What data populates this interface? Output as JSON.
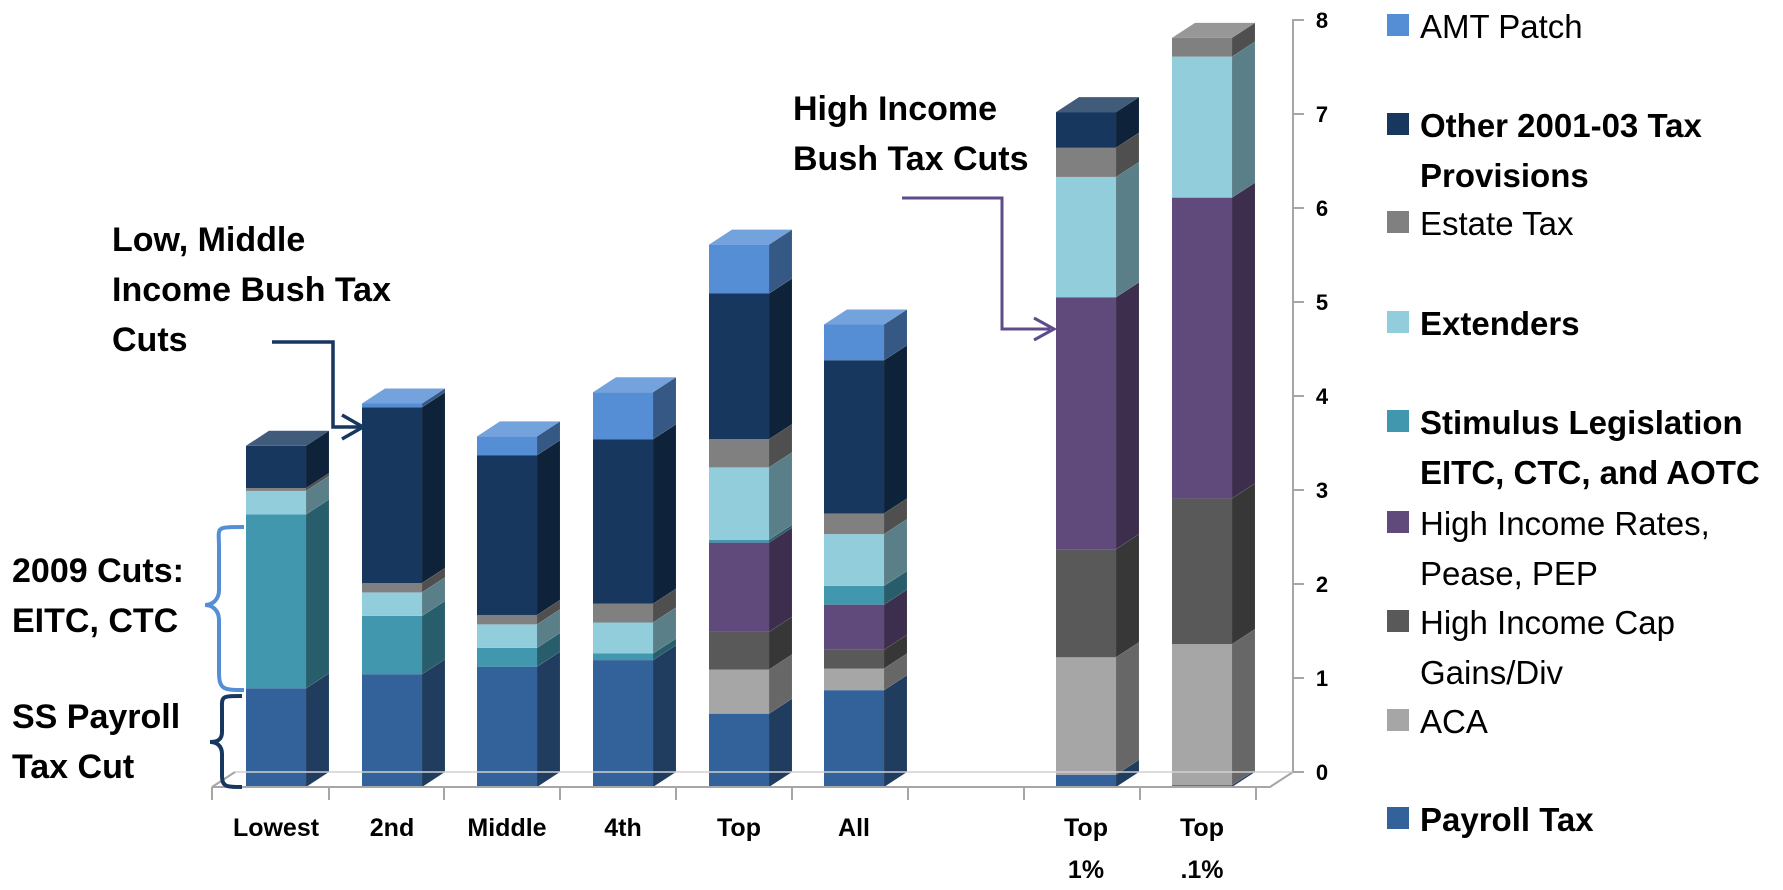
{
  "chart_data": {
    "type": "bar",
    "stacked": true,
    "categories": [
      "Lowest",
      "2nd",
      "Middle",
      "4th",
      "Top",
      "All",
      "Top 1%",
      "Top .1%"
    ],
    "y_axis": {
      "ticks": [
        0,
        1,
        2,
        3,
        4,
        5,
        6,
        7,
        8
      ],
      "range": [
        0,
        8
      ],
      "position": "right"
    },
    "series": [
      {
        "name": "Payroll Tax",
        "color": "#336199",
        "values": [
          1.05,
          1.2,
          1.28,
          1.35,
          0.78,
          1.03,
          0.13,
          0.02
        ]
      },
      {
        "name": "ACA",
        "color": "#a6a6a6",
        "values": [
          0,
          0,
          0,
          0,
          0.47,
          0.23,
          1.25,
          1.5
        ]
      },
      {
        "name": "High Income Cap Gains/Div",
        "color": "#595959",
        "values": [
          0,
          0,
          0,
          0,
          0.4,
          0.2,
          1.15,
          1.55
        ]
      },
      {
        "name": "High Income Rates, Pease, PEP",
        "color": "#604a7b",
        "values": [
          0,
          0,
          0,
          0,
          0.95,
          0.48,
          2.68,
          3.2
        ]
      },
      {
        "name": "Stimulus Legislation EITC, CTC, and AOTC",
        "color": "#4197ae",
        "values": [
          1.85,
          0.62,
          0.2,
          0.07,
          0.03,
          0.2,
          0,
          0
        ]
      },
      {
        "name": "Extenders",
        "color": "#92cddc",
        "values": [
          0.25,
          0.25,
          0.25,
          0.33,
          0.77,
          0.55,
          1.28,
          1.5
        ]
      },
      {
        "name": "Estate Tax",
        "color": "#808080",
        "values": [
          0.03,
          0.1,
          0.1,
          0.2,
          0.3,
          0.22,
          0.31,
          0.2
        ]
      },
      {
        "name": "Other 2001-03 Tax Provisions",
        "color": "#17375e",
        "values": [
          0.45,
          1.87,
          1.7,
          1.75,
          1.55,
          1.63,
          0.38,
          0
        ]
      },
      {
        "name": "AMT Patch",
        "color": "#558ed5",
        "values": [
          0,
          0.04,
          0.2,
          0.5,
          0.52,
          0.38,
          0,
          0
        ]
      }
    ],
    "legend": {
      "placement": "right",
      "entries": [
        {
          "label": "AMT Patch",
          "color": "#558ed5",
          "bold": false
        },
        {
          "label": "Other 2001-03 Tax Provisions",
          "color": "#17375e",
          "bold": true
        },
        {
          "label": "Estate Tax",
          "color": "#808080",
          "bold": false
        },
        {
          "label": "Extenders",
          "color": "#92cddc",
          "bold": true
        },
        {
          "label": "Stimulus Legislation EITC, CTC, and AOTC",
          "color": "#4197ae",
          "bold": true
        },
        {
          "label": "High Income Rates, Pease, PEP",
          "color": "#604a7b",
          "bold": false
        },
        {
          "label": "High Income Cap Gains/Div",
          "color": "#595959",
          "bold": false
        },
        {
          "label": "ACA",
          "color": "#a6a6a6",
          "bold": false
        },
        {
          "label": "Payroll Tax",
          "color": "#336199",
          "bold": true
        }
      ]
    },
    "annotations": [
      {
        "id": "high-income",
        "text": "High Income Bush Tax Cuts"
      },
      {
        "id": "low-middle",
        "text": "Low, Middle Income Bush Tax Cuts"
      },
      {
        "id": "cuts-2009",
        "text": "2009 Cuts: EITC, CTC"
      },
      {
        "id": "ss-payroll",
        "text": "SS Payroll Tax Cut"
      }
    ],
    "annotation_colors": {
      "high-income": "#5f4b8b",
      "low-middle": "#17375e",
      "cuts-2009": "#558ed5",
      "ss-payroll": "#17375e"
    },
    "grid": false
  }
}
